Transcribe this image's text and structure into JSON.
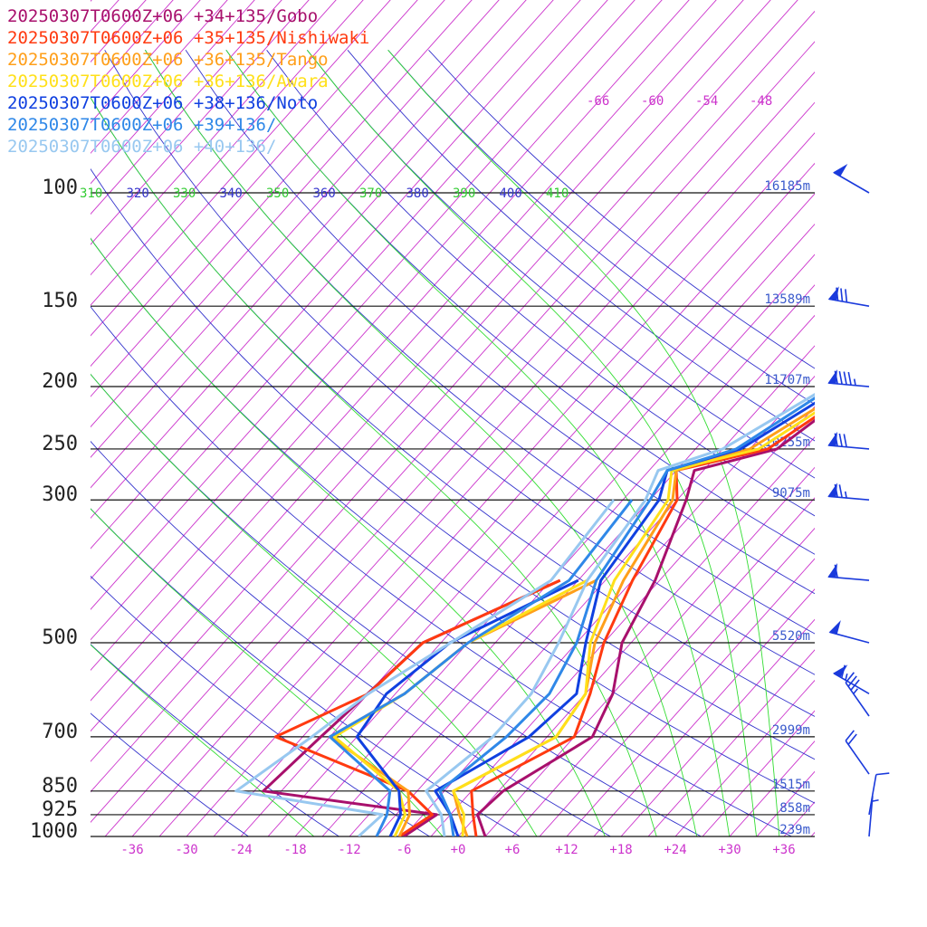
{
  "chart_data": {
    "type": "line",
    "title": "",
    "xlabel": "",
    "ylabel": "",
    "x_tick_labels": [
      "-36",
      "-30",
      "-24",
      "-18",
      "-12",
      "-6",
      "+0",
      "+6",
      "+12",
      "+18",
      "+24",
      "+30",
      "+36"
    ],
    "x_range": [
      -40,
      40
    ],
    "pressure_levels": [
      100,
      150,
      200,
      250,
      300,
      500,
      700,
      850,
      925,
      1000
    ],
    "pressure_labels": [
      "100",
      "150",
      "200",
      "250",
      "300",
      "500",
      "700",
      "850",
      "925",
      "1000"
    ],
    "heights": [
      {
        "p": 100,
        "label": "16185m"
      },
      {
        "p": 150,
        "label": "13589m"
      },
      {
        "p": 200,
        "label": "11707m"
      },
      {
        "p": 250,
        "label": "10255m"
      },
      {
        "p": 300,
        "label": "9075m"
      },
      {
        "p": 500,
        "label": "5520m"
      },
      {
        "p": 700,
        "label": "2999m"
      },
      {
        "p": 850,
        "label": "1515m"
      },
      {
        "p": 925,
        "label": "858m"
      },
      {
        "p": 1000,
        "label": "239m"
      }
    ],
    "isotherm_top_labels": [
      "-66",
      "-60",
      "-54",
      "-48"
    ],
    "theta_labels": [
      "310",
      "320",
      "330",
      "340",
      "350",
      "360",
      "370",
      "380",
      "390",
      "400",
      "410"
    ],
    "colors": {
      "isotherm": "#cc33cc",
      "dry_adiabat": "#3333cc",
      "moist_adiabat": "#33dd33",
      "wind_barb": "#1a3adc",
      "height_label": "#3a5acc"
    },
    "series": [
      {
        "name": "20250307T0600Z+06 +34+135/Gobo",
        "color": "#a8106c",
        "points": [
          [
            3,
            1000
          ],
          [
            0,
            925
          ],
          [
            0.5,
            850
          ],
          [
            5,
            700
          ],
          [
            3,
            600
          ],
          [
            -1,
            500
          ],
          [
            -3.5,
            400
          ],
          [
            -8,
            300
          ],
          [
            -10,
            270
          ],
          [
            -3,
            250
          ],
          [
            0,
            200
          ],
          [
            0,
            150
          ],
          [
            -2,
            125
          ],
          [
            2.3,
            103
          ],
          [
            40,
            12.5
          ],
          [
            24,
            20
          ]
        ],
        "dew": [
          [
            -6,
            1000
          ],
          [
            -4.5,
            925
          ],
          [
            -26,
            850
          ],
          [
            -25,
            700
          ],
          [
            -23,
            500
          ],
          [
            -14,
            400
          ]
        ]
      },
      {
        "name": "20250307T0600Z+06 +35+135/Nishiwaki",
        "color": "#ff3a10",
        "points": [
          [
            2,
            1000
          ],
          [
            -0.5,
            925
          ],
          [
            -3,
            850
          ],
          [
            3,
            700
          ],
          [
            0.5,
            600
          ],
          [
            -3,
            500
          ],
          [
            -6,
            400
          ],
          [
            -9,
            300
          ],
          [
            -12,
            270
          ],
          [
            -4,
            250
          ],
          [
            0,
            200
          ],
          [
            -1,
            150
          ],
          [
            0,
            130
          ],
          [
            5,
            103
          ],
          [
            43,
            13
          ],
          [
            30,
            20
          ]
        ],
        "dew": [
          [
            -6.5,
            1000
          ],
          [
            -5,
            925
          ],
          [
            -10,
            850
          ],
          [
            -30,
            700
          ],
          [
            -24,
            600
          ],
          [
            -23,
            500
          ],
          [
            -14,
            400
          ]
        ]
      },
      {
        "name": "20250307T0600Z+06 +36+135/Tango",
        "color": "#ff9f1a",
        "points": [
          [
            1,
            1000
          ],
          [
            -2,
            925
          ],
          [
            -5,
            850
          ],
          [
            1,
            700
          ],
          [
            0,
            600
          ],
          [
            -4,
            500
          ],
          [
            -7,
            400
          ],
          [
            -9.5,
            300
          ],
          [
            -12,
            270
          ],
          [
            -6,
            250
          ],
          [
            -1,
            200
          ],
          [
            -1,
            150
          ],
          [
            2,
            130
          ],
          [
            7,
            103
          ],
          [
            45,
            13
          ]
        ],
        "dew": [
          [
            -6.5,
            1000
          ],
          [
            -7.5,
            925
          ],
          [
            -10,
            850
          ],
          [
            -24,
            700
          ],
          [
            -20,
            600
          ],
          [
            -18,
            500
          ],
          [
            -10,
            400
          ]
        ]
      },
      {
        "name": "20250307T0600Z+06 +36+136/Awara",
        "color": "#ffe01a",
        "points": [
          [
            0.5,
            1000
          ],
          [
            -1.5,
            925
          ],
          [
            -5,
            850
          ],
          [
            1,
            700
          ],
          [
            0,
            600
          ],
          [
            -4.5,
            500
          ],
          [
            -8,
            400
          ],
          [
            -10,
            300
          ],
          [
            -12.5,
            270
          ],
          [
            -5,
            250
          ],
          [
            -0.5,
            200
          ],
          [
            0,
            150
          ],
          [
            3,
            130
          ],
          [
            8,
            103
          ],
          [
            46,
            13.5
          ]
        ],
        "dew": [
          [
            -7,
            1000
          ],
          [
            -8,
            925
          ],
          [
            -11,
            850
          ],
          [
            -23.5,
            700
          ],
          [
            -20,
            600
          ],
          [
            -18,
            500
          ],
          [
            -11,
            400
          ]
        ]
      },
      {
        "name": "20250307T0600Z+06 +38+136/Noto",
        "color": "#1040e0",
        "points": [
          [
            0,
            1000
          ],
          [
            -3,
            925
          ],
          [
            -7,
            850
          ],
          [
            -2,
            700
          ],
          [
            -1,
            600
          ],
          [
            -5,
            500
          ],
          [
            -9.5,
            400
          ],
          [
            -11,
            300
          ],
          [
            -13,
            270
          ],
          [
            -7,
            250
          ],
          [
            -2,
            200
          ],
          [
            3,
            150
          ],
          [
            3.5,
            140
          ],
          [
            10,
            103
          ],
          [
            46,
            14
          ]
        ],
        "dew": [
          [
            -7.5,
            1000
          ],
          [
            -8.5,
            925
          ],
          [
            -11,
            850
          ],
          [
            -21,
            700
          ],
          [
            -22,
            600
          ],
          [
            -20,
            500
          ],
          [
            -12,
            400
          ]
        ]
      },
      {
        "name": "20250307T0600Z+06 +39+136/",
        "color": "#2f88e8",
        "points": [
          [
            -0.5,
            1000
          ],
          [
            -3,
            925
          ],
          [
            -6.5,
            850
          ],
          [
            -4.5,
            700
          ],
          [
            -4,
            600
          ],
          [
            -6,
            500
          ],
          [
            -10,
            400
          ],
          [
            -12,
            300
          ],
          [
            -13,
            270
          ],
          [
            -7.5,
            250
          ],
          [
            -3,
            200
          ],
          [
            4,
            150
          ],
          [
            5,
            130
          ],
          [
            12,
            103
          ],
          [
            47,
            14
          ]
        ],
        "dew": [
          [
            -9,
            1000
          ],
          [
            -10,
            925
          ],
          [
            -12,
            850
          ],
          [
            -24,
            700
          ],
          [
            -20,
            600
          ],
          [
            -18,
            500
          ],
          [
            -13,
            400
          ],
          [
            -14,
            300
          ]
        ]
      },
      {
        "name": "20250307T0600Z+06 +40+136/",
        "color": "#98c8f0",
        "points": [
          [
            -1.5,
            1000
          ],
          [
            -4,
            925
          ],
          [
            -8,
            850
          ],
          [
            -6,
            700
          ],
          [
            -6,
            600
          ],
          [
            -8,
            500
          ],
          [
            -11,
            400
          ],
          [
            -12.5,
            300
          ],
          [
            -14,
            270
          ],
          [
            -9,
            250
          ],
          [
            -3.5,
            200
          ],
          [
            6,
            170
          ],
          [
            6,
            150
          ],
          [
            15,
            103
          ],
          [
            47,
            15
          ]
        ],
        "dew": [
          [
            -11,
            1000
          ],
          [
            -10.5,
            925
          ],
          [
            -29,
            850
          ],
          [
            -26,
            700
          ],
          [
            -24,
            600
          ],
          [
            -15,
            400
          ],
          [
            -16,
            300
          ]
        ]
      }
    ],
    "wind_barbs": [
      {
        "p": 100,
        "dir": 300,
        "speed": 50
      },
      {
        "p": 150,
        "dir": 280,
        "speed": 80
      },
      {
        "p": 200,
        "dir": 275,
        "speed": 95
      },
      {
        "p": 250,
        "dir": 275,
        "speed": 80
      },
      {
        "p": 300,
        "dir": 275,
        "speed": 75
      },
      {
        "p": 400,
        "dir": 275,
        "speed": 60
      },
      {
        "p": 500,
        "dir": 285,
        "speed": 50
      },
      {
        "p": 600,
        "dir": 300,
        "speed": 65
      },
      {
        "p": 650,
        "dir": 325,
        "speed": 35
      },
      {
        "p": 800,
        "dir": 325,
        "speed": 20
      },
      {
        "p": 925,
        "dir": 10,
        "speed": 10
      },
      {
        "p": 1000,
        "dir": 5,
        "speed": 5
      }
    ]
  }
}
